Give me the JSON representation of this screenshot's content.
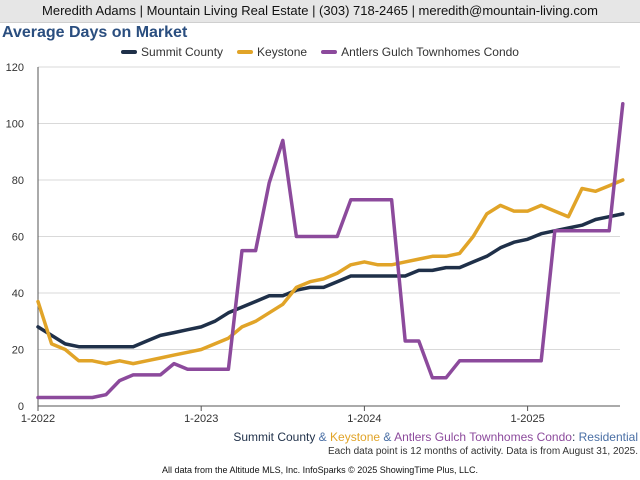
{
  "header": {
    "contact": "Meredith Adams | Mountain Living Real Estate | (303) 718-2465 | meredith@mountain-living.com"
  },
  "footer": {
    "series_label": {
      "part1": "Summit County",
      "amp1": " & ",
      "part2": "Keystone",
      "amp2": " & ",
      "part3": "Antlers Gulch Townhomes Condo",
      "colon": ":",
      "part4": " Residential"
    },
    "note": "Each data point is 12 months of activity. Data is from August 31, 2025.",
    "credit": "All data from the Altitude MLS, Inc. InfoSparks © 2025 ShowingTime Plus, LLC."
  },
  "colors": {
    "summit": "#1f3049",
    "keystone": "#e1a428",
    "antlers": "#8c4a9c",
    "title": "#2a4e7f",
    "footer_amp": "#4a6fa5"
  },
  "chart_data": {
    "type": "line",
    "title": "Average Days on Market",
    "xlabel": "",
    "ylabel": "",
    "ylim": [
      0,
      120
    ],
    "yticks": [
      "0",
      "20",
      "40",
      "60",
      "80",
      "100",
      "120"
    ],
    "xticks": [
      "1-2022",
      "1-2023",
      "1-2024",
      "1-2025"
    ],
    "x": [
      "2022-01",
      "2022-02",
      "2022-03",
      "2022-04",
      "2022-05",
      "2022-06",
      "2022-07",
      "2022-08",
      "2022-09",
      "2022-10",
      "2022-11",
      "2022-12",
      "2023-01",
      "2023-02",
      "2023-03",
      "2023-04",
      "2023-05",
      "2023-06",
      "2023-07",
      "2023-08",
      "2023-09",
      "2023-10",
      "2023-11",
      "2023-12",
      "2024-01",
      "2024-02",
      "2024-03",
      "2024-04",
      "2024-05",
      "2024-06",
      "2024-07",
      "2024-08",
      "2024-09",
      "2024-10",
      "2024-11",
      "2024-12",
      "2025-01",
      "2025-02",
      "2025-03",
      "2025-04",
      "2025-05",
      "2025-06",
      "2025-07",
      "2025-08"
    ],
    "grid": true,
    "legend_position": "top",
    "series": [
      {
        "name": "Summit County",
        "color": "#1f3049",
        "values": [
          28,
          25,
          22,
          21,
          21,
          21,
          21,
          21,
          23,
          25,
          26,
          27,
          28,
          30,
          33,
          35,
          37,
          39,
          39,
          41,
          42,
          42,
          44,
          46,
          46,
          46,
          46,
          46,
          48,
          48,
          49,
          49,
          51,
          53,
          56,
          58,
          59,
          61,
          62,
          63,
          64,
          66,
          67,
          68
        ]
      },
      {
        "name": "Keystone",
        "color": "#e1a428",
        "values": [
          37,
          22,
          20,
          16,
          16,
          15,
          16,
          15,
          16,
          17,
          18,
          19,
          20,
          22,
          24,
          28,
          30,
          33,
          36,
          42,
          44,
          45,
          47,
          50,
          51,
          50,
          50,
          51,
          52,
          53,
          53,
          54,
          60,
          68,
          71,
          69,
          69,
          71,
          69,
          67,
          77,
          76,
          78,
          80
        ]
      },
      {
        "name": "Antlers Gulch Townhomes Condo",
        "color": "#8c4a9c",
        "values": [
          3,
          3,
          3,
          3,
          3,
          4,
          9,
          11,
          11,
          11,
          15,
          13,
          13,
          13,
          13,
          55,
          55,
          79,
          94,
          60,
          60,
          60,
          60,
          73,
          73,
          73,
          73,
          23,
          23,
          10,
          10,
          16,
          16,
          16,
          16,
          16,
          16,
          16,
          62,
          62,
          62,
          62,
          62,
          107
        ]
      }
    ]
  }
}
